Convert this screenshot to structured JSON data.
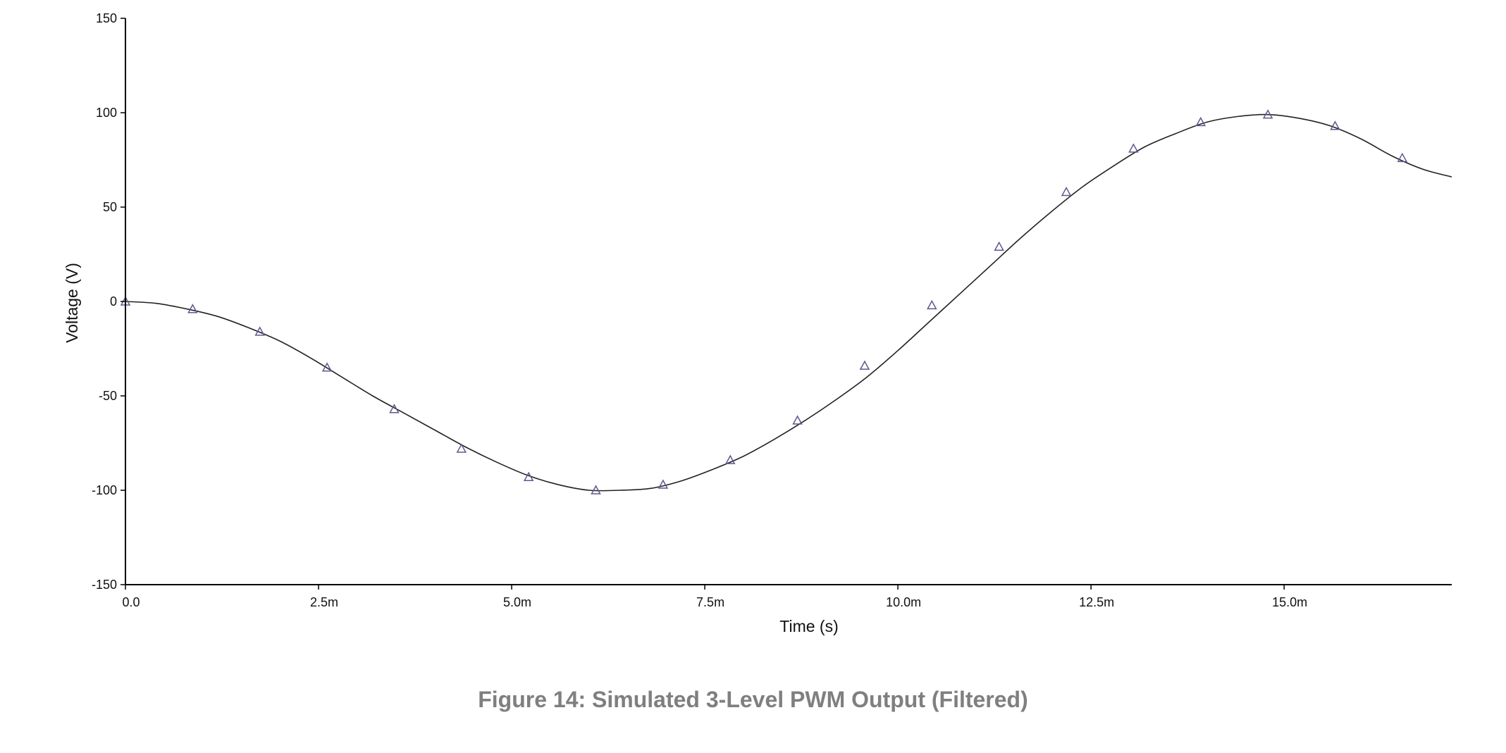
{
  "caption": "Figure 14: Simulated 3-Level PWM Output (Filtered)",
  "chart_data": {
    "type": "line",
    "title": "",
    "xlabel": "Time (s)",
    "ylabel": "Voltage (V)",
    "xlim": [
      0.0,
      0.01717
    ],
    "ylim": [
      -150,
      150
    ],
    "grid": false,
    "xticks": [
      {
        "value": 0.0,
        "label": "0.0"
      },
      {
        "value": 0.0025,
        "label": "2.5m"
      },
      {
        "value": 0.005,
        "label": "5.0m"
      },
      {
        "value": 0.0075,
        "label": "7.5m"
      },
      {
        "value": 0.01,
        "label": "10.0m"
      },
      {
        "value": 0.0125,
        "label": "12.5m"
      },
      {
        "value": 0.015,
        "label": "15.0m"
      }
    ],
    "yticks": [
      {
        "value": 150,
        "label": "150"
      },
      {
        "value": 100,
        "label": "100"
      },
      {
        "value": 50,
        "label": "50"
      },
      {
        "value": 0,
        "label": "0"
      },
      {
        "value": -50,
        "label": "-50"
      },
      {
        "value": -100,
        "label": "-100"
      },
      {
        "value": -150,
        "label": "-150"
      }
    ],
    "colors": {
      "line": "#222222",
      "marker": "#5a5a8c",
      "axis": "#000000"
    },
    "series": [
      {
        "marker": "triangle",
        "x": [
          0.0,
          0.0004,
          0.0008,
          0.0012,
          0.0016,
          0.002,
          0.0024,
          0.0028,
          0.0032,
          0.0036,
          0.004,
          0.0044,
          0.0048,
          0.0052,
          0.0056,
          0.006,
          0.0064,
          0.0068,
          0.0072,
          0.0076,
          0.008,
          0.0084,
          0.0088,
          0.0092,
          0.0096,
          0.01,
          0.0104,
          0.0108,
          0.0112,
          0.0116,
          0.012,
          0.0124,
          0.0128,
          0.0132,
          0.0136,
          0.014,
          0.0144,
          0.0148,
          0.0152,
          0.0156,
          0.016,
          0.0164,
          0.0168,
          0.01717
        ],
        "y": [
          0,
          -1,
          -4,
          -8,
          -14,
          -21,
          -30,
          -40,
          -50,
          -59,
          -68,
          -77,
          -85,
          -92,
          -97,
          -100,
          -100,
          -99,
          -95,
          -89,
          -82,
          -73,
          -63,
          -52,
          -40,
          -26,
          -11,
          4,
          19,
          34,
          48,
          61,
          72,
          82,
          89,
          95,
          98,
          99,
          97,
          93,
          86,
          77,
          70,
          66
        ]
      }
    ],
    "markers": {
      "x": [
        0.0,
        0.00087,
        0.00174,
        0.00261,
        0.00348,
        0.00435,
        0.00522,
        0.00609,
        0.00696,
        0.00783,
        0.0087,
        0.00957,
        0.01044,
        0.01131,
        0.01218,
        0.01305,
        0.01392,
        0.01479,
        0.01566,
        0.01653
      ],
      "y": [
        0,
        -4,
        -16,
        -35,
        -57,
        -78,
        -93,
        -100,
        -97,
        -84,
        -63,
        -34,
        -2,
        29,
        58,
        81,
        95,
        99,
        93,
        76
      ]
    }
  }
}
